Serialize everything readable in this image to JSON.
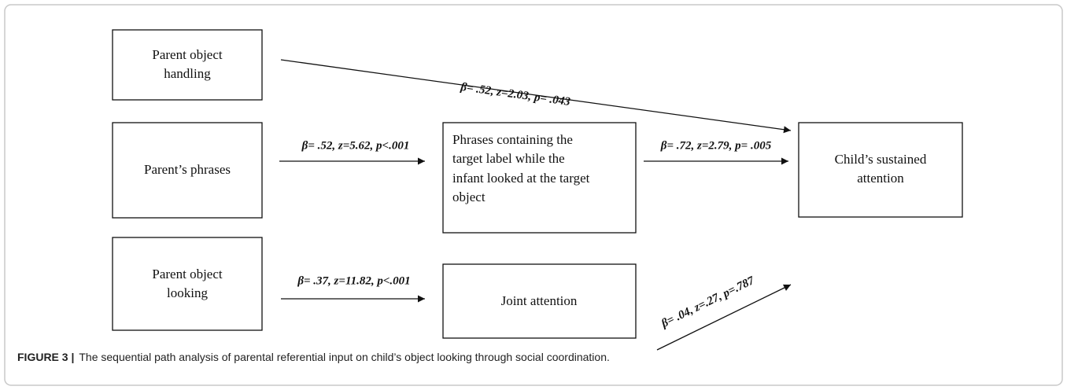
{
  "nodes": [
    {
      "lines": [
        "Parent object",
        "handling"
      ]
    },
    {
      "lines": [
        "Parent’s phrases"
      ]
    },
    {
      "lines": [
        "Parent object",
        "looking"
      ]
    },
    {
      "lines": [
        "Phrases containing the",
        "target label while the",
        "infant looked at the target",
        "object"
      ]
    },
    {
      "lines": [
        "Joint attention"
      ]
    },
    {
      "lines": [
        "Child’s sustained",
        "attention"
      ]
    }
  ],
  "edges": [
    {
      "label": "β= .52, z=2.03, p= .043"
    },
    {
      "label": "β= .52, z=5.62, p<.001"
    },
    {
      "label": "β= .72, z=2.79, p= .005"
    },
    {
      "label": "β= .37, z=11.82, p<.001"
    },
    {
      "label": "β= .04, z=.27, p=.787"
    }
  ],
  "caption": {
    "label": "FIGURE 3 |",
    "text": "The sequential path analysis of parental referential input on child’s object looking through social coordination."
  }
}
